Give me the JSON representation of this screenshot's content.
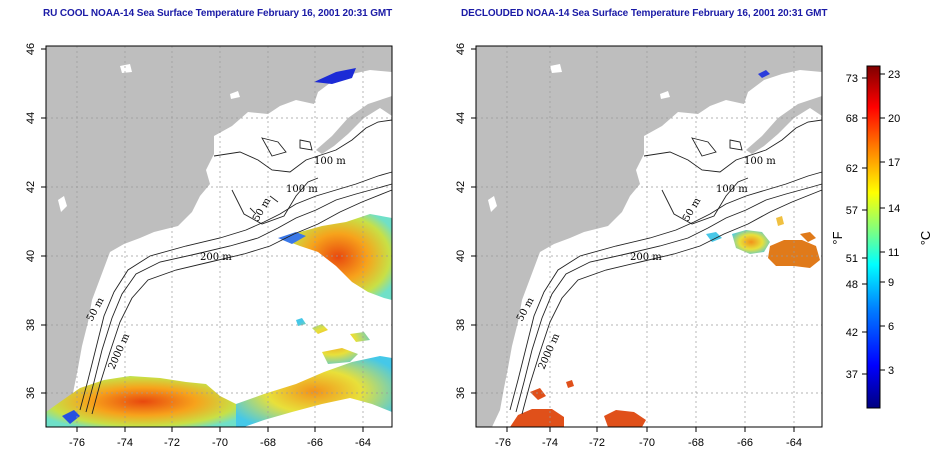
{
  "panels": [
    {
      "id": "left",
      "title": "RU COOL NOAA-14 Sea Surface Temperature February 16, 2001 20:31 GMT",
      "x_ticks": [
        "-76",
        "-74",
        "-72",
        "-70",
        "-68",
        "-66",
        "-64"
      ],
      "y_ticks": [
        "36",
        "38",
        "40",
        "42",
        "44",
        "46"
      ],
      "contour_labels": [
        "100 m",
        "100 m",
        "50 m",
        "200 m",
        "50 m",
        "2000 m"
      ]
    },
    {
      "id": "right",
      "title": "DECLOUDED NOAA-14 Sea Surface Temperature February 16, 2001 20:31 GMT",
      "x_ticks": [
        "-76",
        "-74",
        "-72",
        "-70",
        "-68",
        "-66",
        "-64"
      ],
      "y_ticks": [
        "36",
        "38",
        "40",
        "42",
        "44",
        "46"
      ],
      "contour_labels": [
        "100 m",
        "100 m",
        "50 m",
        "200 m",
        "50 m",
        "2000 m"
      ]
    }
  ],
  "colorbar": {
    "fahrenheit_ticks": [
      "73",
      "68",
      "62",
      "57",
      "51",
      "48",
      "42",
      "37"
    ],
    "celsius_ticks": [
      "23",
      "20",
      "17",
      "14",
      "11",
      "9",
      "6",
      "3"
    ],
    "fahrenheit_unit": "°F",
    "celsius_unit": "°C",
    "colors": [
      "#00007f",
      "#0000ff",
      "#007fff",
      "#00ffff",
      "#7fff7f",
      "#ffff00",
      "#ff7f00",
      "#ff0000",
      "#7f0000"
    ]
  },
  "colors": {
    "land": "#bebebe",
    "title": "#1a1aa6",
    "grid": "#9a9a9a"
  }
}
